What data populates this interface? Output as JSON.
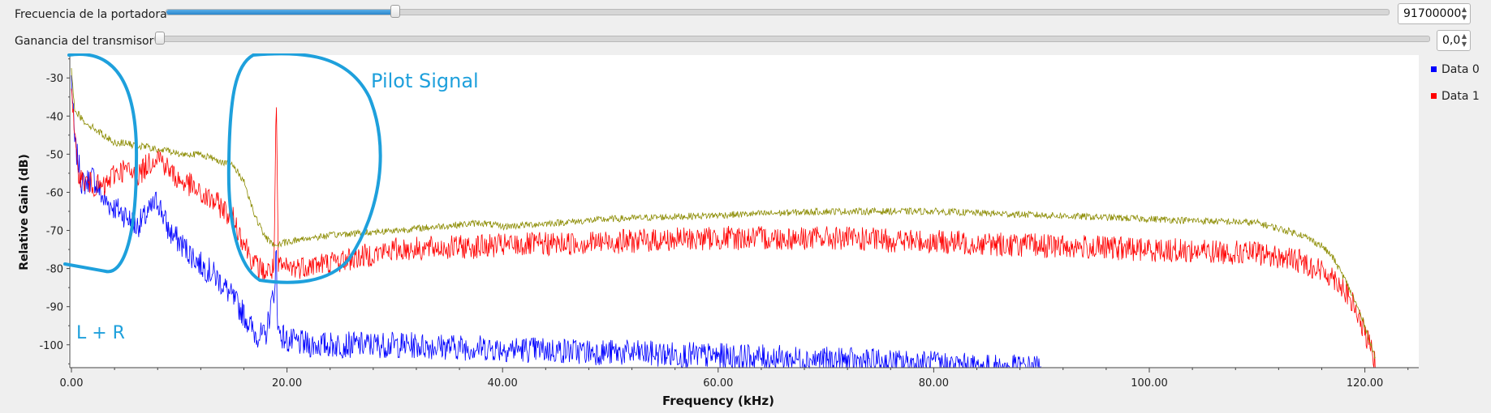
{
  "controls": {
    "carrier": {
      "label": "Frecuencia de la portadora",
      "value": "91700000",
      "fraction": 0.187
    },
    "gain": {
      "label": "Ganancia del transmisor",
      "value": "0,0",
      "fraction": 0.0
    }
  },
  "legend": [
    {
      "label": "Data 0",
      "color": "#0000ff"
    },
    {
      "label": "Data 1",
      "color": "#ff0000"
    }
  ],
  "annotations": {
    "lr": "L + R",
    "pilot": "Pilot Signal",
    "color": "#1ea0dc"
  },
  "chart_data": {
    "type": "line",
    "xlabel": "Frequency (kHz)",
    "ylabel": "Relative Gain (dB)",
    "xlim": [
      0,
      125
    ],
    "ylim": [
      -106,
      -24
    ],
    "xticks": [
      {
        "v": 0,
        "label": "0.00"
      },
      {
        "v": 20,
        "label": "20.00"
      },
      {
        "v": 40,
        "label": "40.00"
      },
      {
        "v": 60,
        "label": "60.00"
      },
      {
        "v": 80,
        "label": "80.00"
      },
      {
        "v": 100,
        "label": "100.00"
      },
      {
        "v": 120,
        "label": "120.00"
      }
    ],
    "yticks": [
      {
        "v": -30,
        "label": "-30"
      },
      {
        "v": -40,
        "label": "-40"
      },
      {
        "v": -50,
        "label": "-50"
      },
      {
        "v": -60,
        "label": "-60"
      },
      {
        "v": -70,
        "label": "-70"
      },
      {
        "v": -80,
        "label": "-80"
      },
      {
        "v": -90,
        "label": "-90"
      },
      {
        "v": -100,
        "label": "-100"
      }
    ],
    "series": [
      {
        "name": "Data 0",
        "color": "#0000ff",
        "x": [
          0,
          0.3,
          1,
          2,
          3,
          4,
          5,
          6,
          7,
          8,
          9,
          10,
          11,
          12,
          13,
          14,
          15,
          16,
          17,
          18,
          18.9,
          19,
          19.1,
          20,
          22,
          25,
          30,
          40,
          50,
          60,
          70,
          80,
          85,
          90
        ],
        "y": [
          -30,
          -47,
          -58,
          -56,
          -62,
          -64,
          -66,
          -69,
          -66,
          -62,
          -70,
          -73,
          -76,
          -79,
          -81,
          -84,
          -88,
          -92,
          -97,
          -98,
          -84,
          -70,
          -96,
          -99,
          -100,
          -100,
          -100,
          -101,
          -102,
          -103,
          -104,
          -105,
          -106,
          -106
        ]
      },
      {
        "name": "Data 1",
        "color": "#ff0000",
        "x": [
          0,
          0.2,
          0.5,
          1,
          2,
          3,
          4,
          5,
          6,
          7,
          8,
          9,
          10,
          11,
          12,
          13,
          14,
          15,
          16,
          17,
          18,
          18.8,
          19,
          19.2,
          20,
          25,
          30,
          40,
          50,
          60,
          70,
          80,
          90,
          100,
          110,
          114,
          117,
          118,
          119,
          120,
          121
        ],
        "y": [
          -30,
          -42,
          -53,
          -57,
          -58,
          -59,
          -55,
          -54,
          -56,
          -53,
          -50,
          -54,
          -57,
          -58,
          -61,
          -62,
          -64,
          -67,
          -73,
          -79,
          -81,
          -80,
          -33,
          -80,
          -80,
          -78,
          -75,
          -74,
          -73,
          -72,
          -72,
          -73,
          -74,
          -75,
          -76,
          -78,
          -82,
          -85,
          -90,
          -97,
          -105
        ]
      },
      {
        "name": "",
        "color": "#8b8b00",
        "x": [
          0,
          0.3,
          1,
          2,
          3,
          4,
          5,
          6,
          7,
          8,
          9,
          10,
          11,
          12,
          13,
          14,
          15,
          16,
          17,
          18,
          19,
          20,
          22,
          25,
          30,
          38,
          40,
          50,
          60,
          70,
          80,
          90,
          100,
          110,
          114,
          116,
          117,
          118,
          119,
          120,
          121
        ],
        "y": [
          -28,
          -38,
          -41,
          -43,
          -45,
          -47,
          -47,
          -48,
          -48,
          -49,
          -49,
          -50,
          -50,
          -50,
          -51,
          -52,
          -53,
          -57,
          -66,
          -72,
          -74,
          -73,
          -72,
          -71,
          -70,
          -68,
          -69,
          -67,
          -66,
          -65,
          -65,
          -66,
          -67,
          -68,
          -71,
          -74,
          -77,
          -82,
          -88,
          -95,
          -104
        ]
      }
    ]
  }
}
